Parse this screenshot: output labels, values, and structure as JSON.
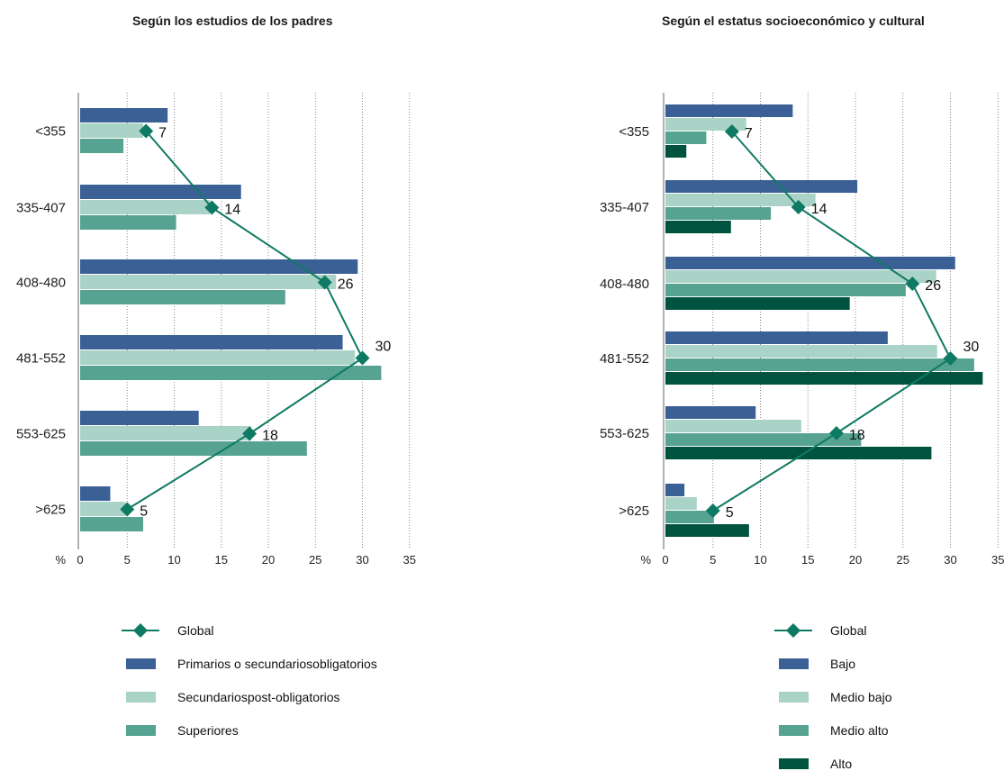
{
  "chart_data": [
    {
      "type": "bar",
      "orientation": "horizontal",
      "title": "Según los estudios de los padres",
      "categories": [
        "<355",
        "335-407",
        "408-480",
        "481-552",
        "553-625",
        ">625"
      ],
      "axis_unit": "%",
      "xlim": [
        0,
        35
      ],
      "xticks": [
        0,
        5,
        10,
        15,
        20,
        25,
        30,
        35
      ],
      "grid": true,
      "legend_position": "bottom",
      "series": [
        {
          "name": "Primarios o secundariosobligatorios",
          "color": "#3a6096",
          "values": [
            9.3,
            17.1,
            29.5,
            27.9,
            12.6,
            3.2
          ]
        },
        {
          "name": "Secundariospost-obligatorios",
          "color": "#a9d3c6",
          "values": [
            6.7,
            13.8,
            27.2,
            29.2,
            18.2,
            4.8
          ]
        },
        {
          "name": "Superiores",
          "color": "#56a392",
          "values": [
            4.6,
            10.2,
            21.8,
            32.0,
            24.1,
            6.7
          ]
        }
      ],
      "line_series": {
        "name": "Global",
        "color": "#0f7a63",
        "values": [
          7,
          14,
          26,
          30,
          18,
          5
        ],
        "labels": [
          "7",
          "14",
          "26",
          "30",
          "18",
          "5"
        ]
      }
    },
    {
      "type": "bar",
      "orientation": "horizontal",
      "title": "Según el estatus socioeconómico y cultural",
      "categories": [
        "<355",
        "335-407",
        "408-480",
        "481-552",
        "553-625",
        ">625"
      ],
      "axis_unit": "%",
      "xlim": [
        0,
        35
      ],
      "xticks": [
        0,
        5,
        10,
        15,
        20,
        25,
        30,
        35
      ],
      "grid": true,
      "legend_position": "bottom",
      "series": [
        {
          "name": "Bajo",
          "color": "#3a6096",
          "values": [
            13.4,
            20.2,
            30.5,
            23.4,
            9.5,
            2.0
          ]
        },
        {
          "name": "Medio bajo",
          "color": "#a9d3c6",
          "values": [
            8.5,
            15.8,
            28.5,
            28.6,
            14.3,
            3.3
          ]
        },
        {
          "name": "Medio alto",
          "color": "#56a392",
          "values": [
            4.3,
            11.1,
            25.3,
            32.5,
            20.6,
            5.1
          ]
        },
        {
          "name": "Alto",
          "color": "#00533f",
          "values": [
            2.2,
            6.9,
            19.4,
            33.4,
            28.0,
            8.8
          ]
        }
      ],
      "line_series": {
        "name": "Global",
        "color": "#0f7a63",
        "values": [
          7,
          14,
          26,
          30,
          18,
          5
        ],
        "labels": [
          "7",
          "14",
          "26",
          "30",
          "18",
          "5"
        ]
      }
    }
  ]
}
